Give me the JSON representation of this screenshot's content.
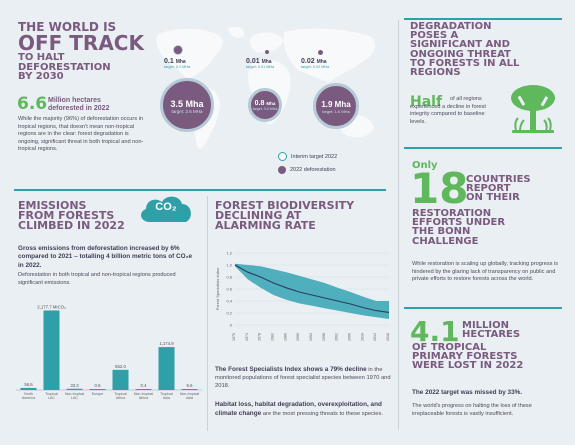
{
  "header": {
    "title_line1": "THE WORLD IS",
    "title_line2": "OFF TRACK",
    "title_line3": "TO HALT",
    "title_line4": "DEFORESTATION",
    "title_line5": "BY 2030",
    "stat_value": "6.6",
    "stat_label_line1": "Million hectares",
    "stat_label_line2": "deforested in 2022",
    "body": "While the majority (96%) of deforestation occurs in tropical regions, that doesn't mean non-tropical regions are in the clear: forest degradation is ongoing, significant threat in both tropical and non-tropical regions."
  },
  "map": {
    "bubbles": [
      {
        "value": "0.1",
        "unit": "Mha",
        "target": "target: 0.1 MHa"
      },
      {
        "value": "0.01",
        "unit": "Mha",
        "target": "target: 0.01 MHa"
      },
      {
        "value": "0.02",
        "unit": "Mha",
        "target": "target: 0.02 MHa"
      },
      {
        "value": "3.5 Mha",
        "target": "target: 2.6 MHa"
      },
      {
        "value": "0.8",
        "unit": "Mha",
        "target": "target: 0.6 MHa"
      },
      {
        "value": "1.9 Mha",
        "target": "target: 1.6 MHa"
      }
    ],
    "legend": {
      "interim": "Interim target 2022",
      "deforestation": "2022 deforestation"
    }
  },
  "degradation": {
    "title_line1": "DEGRADATION",
    "title_line2": "POSES A",
    "title_line3": "SIGNIFICANT AND",
    "title_line4": "ONGOING THREAT",
    "title_line5": "TO FORESTS IN ALL",
    "title_line6": "REGIONS",
    "half": "Half",
    "half_text": "of all regions experienced a decline in forest integrity compared to baseline levels."
  },
  "emissions": {
    "title_line1": "EMISSIONS",
    "title_line2": "FROM FORESTS",
    "title_line3": "CLIMBED IN 2022",
    "cloud": "CO₂",
    "bold_text": "Gross emissions from deforestation increased by 6% compared to 2021 – totalling 4 billion metric tons of CO₂e in 2022.",
    "body": "Deforestation in both tropical and non-tropical regions produced significant emissions."
  },
  "biodiversity": {
    "title_line1": "FOREST BIODIVERSITY",
    "title_line2": "DECLINING AT",
    "title_line3": "ALARMING RATE",
    "text1_bold": "The Forest Specialists Index shows a 79% decline",
    "text1_rest": " in the monitored populations of forest specialist species between 1970 and 2018.",
    "text2_bold": "Habitat loss, habitat degradation, overexploitation, and climate change",
    "text2_rest": " are the most pressing threats to these species."
  },
  "restoration": {
    "only": "Only",
    "number": "18",
    "title_line1": "COUNTRIES",
    "title_line2": "REPORT",
    "title_line3": "ON THEIR",
    "title_line4": "RESTORATION",
    "title_line5": "EFFORTS UNDER",
    "title_line6": "THE BONN",
    "title_line7": "CHALLENGE",
    "body": "While restoration is scaling up globally, tracking progress is hindered by the glaring lack of transparency on public and private efforts to restore forests across the world."
  },
  "tropical": {
    "number": "4.1",
    "title_line1": "MILLION",
    "title_line2": "HECTARES",
    "title_line3": "OF TROPICAL",
    "title_line4": "PRIMARY FORESTS",
    "title_line5": "WERE LOST IN 2022",
    "missed": "The 2022 target was missed by 33%.",
    "body": "The world's progress on halting the loss of these irreplaceable forests is vastly insufficient."
  },
  "chart_data": [
    {
      "type": "bar",
      "title": "",
      "categories": [
        "North America",
        "Tropical LAC",
        "Non-tropical LAC",
        "Europe",
        "Tropical Africa",
        "Non-tropical Africa",
        "Tropical Asia",
        "Non-tropical Asia"
      ],
      "values": [
        56.6,
        2177.7,
        33.3,
        0.6,
        552.0,
        0.4,
        1174.9,
        9.6
      ],
      "value_labels": [
        "56.6",
        "2,177.7 MtCO₂",
        "33.3",
        "0.6",
        "552.0",
        "0.4",
        "1,174.9",
        "9.6"
      ],
      "ylim": [
        0,
        2300
      ]
    },
    {
      "type": "area",
      "title": "",
      "ylabel": "Forest Specialists Index",
      "x": [
        1970,
        1974,
        1978,
        1982,
        1986,
        1990,
        1994,
        1998,
        2002,
        2006,
        2010,
        2014,
        2018
      ],
      "y": [
        1.0,
        0.88,
        0.8,
        0.7,
        0.62,
        0.55,
        0.5,
        0.45,
        0.4,
        0.35,
        0.29,
        0.24,
        0.21
      ],
      "upper": [
        1.02,
        1.0,
        0.98,
        0.93,
        0.88,
        0.82,
        0.76,
        0.7,
        0.62,
        0.55,
        0.47,
        0.4,
        0.4
      ],
      "lower": [
        0.98,
        0.76,
        0.62,
        0.5,
        0.42,
        0.36,
        0.32,
        0.28,
        0.24,
        0.2,
        0.16,
        0.13,
        0.1
      ],
      "yticks": [
        "1.2",
        "1.0",
        "0.8",
        "0.6",
        "0.4",
        "0.2",
        "0"
      ],
      "xticks": [
        "1970",
        "1974",
        "1978",
        "1982",
        "1986",
        "1990",
        "1994",
        "1998",
        "2002",
        "2006",
        "2010",
        "2014",
        "2018"
      ],
      "ylim": [
        0,
        1.2
      ]
    }
  ]
}
